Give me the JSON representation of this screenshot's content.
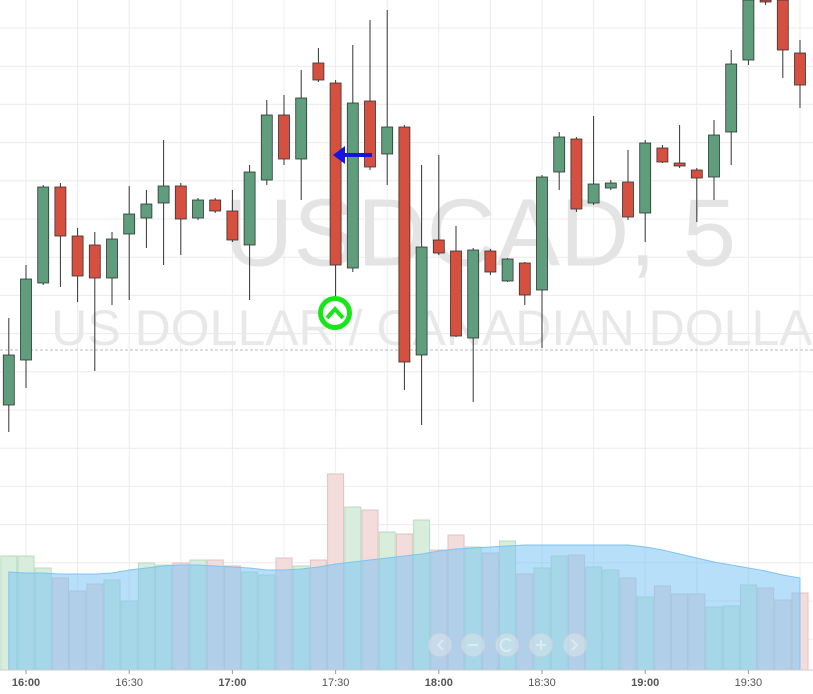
{
  "chart_data": {
    "type": "candlestick",
    "title": "USDCAD, 5",
    "subtitle": "US DOLLAR / CANADIAN DOLLAR",
    "categories": [
      null,
      "16:00",
      null,
      null,
      null,
      null,
      null,
      "16:30",
      null,
      null,
      null,
      null,
      null,
      "17:00",
      null,
      null,
      null,
      null,
      null,
      "17:30",
      null,
      null,
      null,
      null,
      null,
      "18:00",
      null,
      null,
      null,
      null,
      null,
      "18:30",
      null,
      null,
      null,
      null,
      null,
      "19:00",
      null,
      null,
      null,
      null,
      null,
      "19:30",
      null,
      null,
      null
    ],
    "open": [
      45,
      90,
      167,
      263,
      214,
      205,
      172,
      216,
      232,
      247,
      264,
      232,
      250,
      239,
      205,
      270,
      335,
      291,
      387,
      367,
      182,
      349,
      296,
      323,
      95,
      210,
      199,
      112,
      199,
      169,
      187,
      160,
      278,
      311,
      247,
      262,
      268,
      237,
      302,
      287,
      280,
      273,
      318,
      390,
      450,
      450,
      397
    ],
    "high": [
      132,
      185,
      265,
      267,
      222,
      218,
      218,
      264,
      260,
      310,
      267,
      252,
      252,
      260,
      285,
      350,
      355,
      380,
      402,
      370,
      405,
      430,
      440,
      325,
      285,
      295,
      224,
      202,
      201,
      192,
      188,
      275,
      318,
      313,
      334,
      270,
      300,
      310,
      305,
      325,
      282,
      330,
      400,
      450,
      450,
      450,
      410
    ],
    "low": [
      18,
      62,
      165,
      163,
      148,
      79,
      145,
      150,
      202,
      185,
      195,
      230,
      237,
      208,
      150,
      265,
      285,
      250,
      368,
      140,
      178,
      280,
      265,
      60,
      25,
      195,
      113,
      48,
      175,
      168,
      145,
      102,
      260,
      238,
      245,
      260,
      230,
      208,
      287,
      282,
      228,
      250,
      285,
      385,
      445,
      372,
      342
    ],
    "close": [
      95,
      171,
      263,
      214,
      174,
      172,
      211,
      236,
      246,
      264,
      231,
      250,
      239,
      210,
      278,
      335,
      291,
      352,
      370,
      185,
      347,
      283,
      323,
      88,
      203,
      197,
      114,
      200,
      178,
      191,
      155,
      273,
      313,
      241,
      266,
      267,
      233,
      307,
      288,
      284,
      272,
      315,
      386,
      450,
      448,
      400,
      365
    ],
    "volume": [
      114,
      114,
      102,
      92,
      79,
      86,
      90,
      69,
      107,
      105,
      107,
      110,
      110,
      104,
      98,
      95,
      112,
      104,
      110,
      196,
      163,
      160,
      138,
      136,
      150,
      120,
      135,
      123,
      117,
      129,
      96,
      102,
      114,
      115,
      103,
      100,
      92,
      73,
      84,
      76,
      76,
      63,
      64,
      85,
      82,
      70,
      77
    ],
    "volume_ma": [
      98,
      97,
      97,
      96,
      96,
      96,
      97,
      100,
      102,
      104,
      105,
      105,
      104,
      103,
      102,
      100,
      100,
      101,
      103,
      106,
      108,
      110,
      112,
      114,
      116,
      119,
      121,
      122,
      123,
      124,
      125,
      125,
      125,
      125,
      125,
      125,
      125,
      123,
      120,
      116,
      112,
      108,
      105,
      102,
      99,
      95,
      92
    ],
    "price_line": 100,
    "ylim": [
      0,
      450
    ],
    "volume_ylim": [
      0,
      220
    ],
    "up_color": "#5e9e7c",
    "down_color": "#d5503e",
    "volume_ma_color": "#7cc4f4",
    "grid": true
  }
}
